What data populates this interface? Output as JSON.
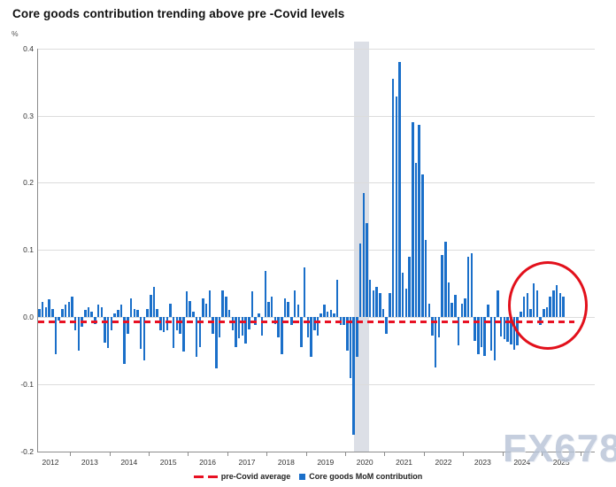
{
  "title": "Core goods contribution trending above pre -Covid levels",
  "y_axis": {
    "unit": "%",
    "ticks": [
      "0.4",
      "0.3",
      "0.2",
      "0.1",
      "0.0",
      "-0.1",
      "-0.2"
    ]
  },
  "x_axis": {
    "years": [
      "2012",
      "2013",
      "2014",
      "2015",
      "2016",
      "2017",
      "2018",
      "2019",
      "2020",
      "2021",
      "2022",
      "2023",
      "2024",
      "2025"
    ]
  },
  "legend": {
    "items": [
      {
        "label": "pre-Covid average",
        "marker": "red-dash",
        "color": "#e81123"
      },
      {
        "label": "Core goods MoM contribution",
        "marker": "blue-square",
        "color": "#1a6fc9"
      }
    ]
  },
  "watermark": "FX678",
  "colors": {
    "bar_blue": "#1a6fc9",
    "reference_red": "#e81123",
    "annotation_circle_red": "#e2101b",
    "recession_band_gray": "#dcdfe6",
    "gridline_gray": "#dcdcdc"
  },
  "chart_data": {
    "type": "bar",
    "title": "Core goods contribution trending above pre -Covid levels",
    "ylabel": "%",
    "ylim": [
      -0.2,
      0.41
    ],
    "x_start": "2012-04",
    "frequency": "monthly",
    "grid": true,
    "legend_position": "bottom-center",
    "series": [
      {
        "name": "Core goods MoM contribution",
        "values": [
          0.012,
          0.022,
          0.015,
          0.026,
          0.012,
          -0.055,
          -0.005,
          0.012,
          0.018,
          0.022,
          0.03,
          -0.02,
          -0.05,
          -0.015,
          0.01,
          0.015,
          0.008,
          -0.01,
          0.018,
          0.015,
          -0.038,
          -0.046,
          -0.02,
          0.005,
          0.01,
          0.018,
          -0.07,
          -0.025,
          0.028,
          0.012,
          0.01,
          -0.048,
          -0.064,
          0.012,
          0.033,
          0.045,
          0.012,
          -0.02,
          -0.022,
          -0.02,
          0.02,
          -0.046,
          -0.02,
          -0.025,
          -0.051,
          0.038,
          0.024,
          0.008,
          -0.06,
          -0.045,
          0.028,
          0.02,
          0.04,
          -0.025,
          -0.077,
          -0.03,
          0.04,
          0.03,
          0.01,
          -0.02,
          -0.045,
          -0.032,
          -0.028,
          -0.04,
          -0.018,
          0.038,
          -0.012,
          0.005,
          -0.028,
          0.068,
          0.022,
          0.03,
          -0.01,
          -0.03,
          -0.055,
          0.028,
          0.022,
          -0.012,
          0.04,
          0.018,
          -0.045,
          0.074,
          -0.03,
          -0.06,
          -0.02,
          -0.028,
          0.005,
          0.018,
          0.008,
          0.01,
          0.005,
          0.056,
          -0.012,
          -0.012,
          -0.05,
          -0.091,
          -0.175,
          -0.06,
          0.11,
          0.185,
          0.14,
          0.055,
          0.04,
          0.045,
          0.035,
          0.012,
          -0.025,
          0.035,
          0.355,
          0.328,
          0.38,
          0.066,
          0.042,
          0.09,
          0.29,
          0.23,
          0.286,
          0.212,
          0.115,
          0.02,
          -0.028,
          -0.075,
          -0.03,
          0.092,
          0.112,
          0.052,
          0.021,
          0.033,
          -0.042,
          0.02,
          0.028,
          0.09,
          0.095,
          -0.035,
          -0.055,
          -0.045,
          -0.058,
          0.018,
          -0.05,
          -0.065,
          0.04,
          -0.029,
          -0.033,
          -0.037,
          -0.041,
          -0.049,
          -0.042,
          0.008,
          0.03,
          0.035,
          0.012,
          0.05,
          0.04,
          -0.012,
          0.012,
          0.015,
          0.03,
          0.04,
          0.048,
          0.035,
          0.03
        ]
      }
    ],
    "reference_line": {
      "label": "pre-Covid average",
      "value": -0.006,
      "style": "red-dashed"
    },
    "shaded_region": {
      "label": "recession band",
      "period": "2020 Covid recession"
    },
    "annotation": {
      "shape": "red-circle",
      "highlights": "recent months (late 2024 - 2025) trending above pre-Covid average"
    }
  }
}
